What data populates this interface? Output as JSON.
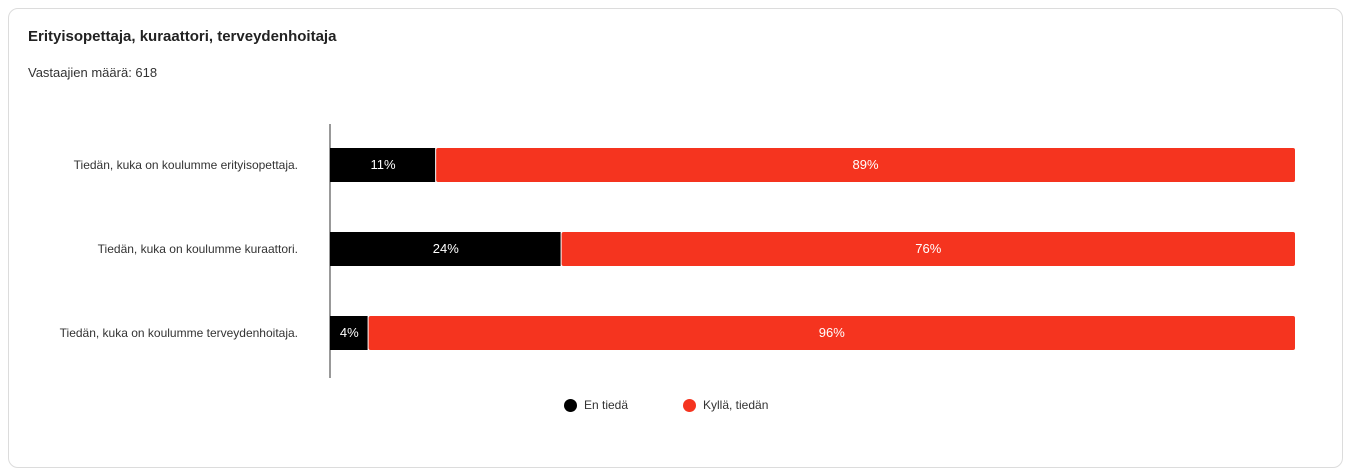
{
  "header": {
    "title": "Erityisopettaja, kuraattori, terveydenhoitaja",
    "respondents": "Vastaajien määrä: 618"
  },
  "chart_data": {
    "type": "bar",
    "orientation": "horizontal",
    "stacked": true,
    "categories": [
      "Tiedän, kuka on koulumme erityisopettaja.",
      "Tiedän, kuka on koulumme kuraattori.",
      "Tiedän, kuka on koulumme terveydenhoitaja."
    ],
    "series": [
      {
        "name": "En tiedä",
        "color": "#000000",
        "values": [
          11,
          24,
          4
        ],
        "labels": [
          "11%",
          "24%",
          "4%"
        ]
      },
      {
        "name": "Kyllä, tiedän",
        "color": "#f5341f",
        "values": [
          89,
          76,
          96
        ],
        "labels": [
          "89%",
          "76%",
          "96%"
        ]
      }
    ],
    "xlim": [
      0,
      100
    ],
    "legend_position": "bottom-center",
    "grid": false
  }
}
